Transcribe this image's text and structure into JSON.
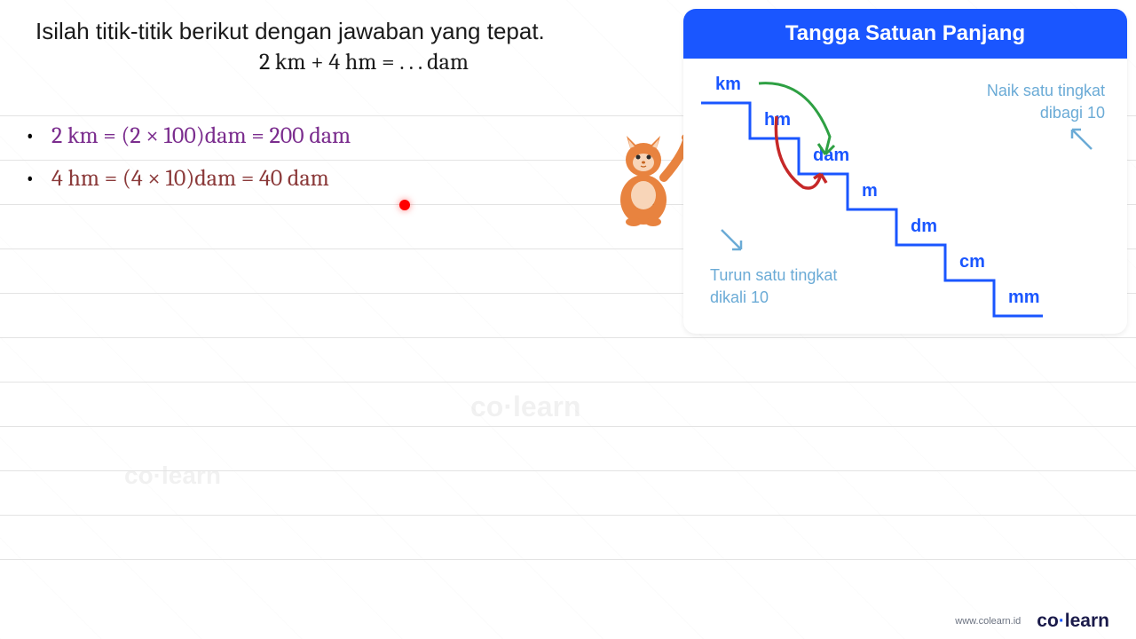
{
  "question": {
    "instruction": "Isilah titik-titik berikut dengan jawaban yang tepat.",
    "equation": "2 km + 4 hm = . . . dam"
  },
  "answers": [
    {
      "text": "2 km = (2 × 100)dam  = 200 dam",
      "color": "#7b2d8e"
    },
    {
      "text": "4 hm = (4 × 10)dam = 40 dam",
      "color": "#8b3a3a"
    }
  ],
  "panel": {
    "title": "Tangga Satuan Panjang",
    "header_bg": "#1a56ff",
    "header_color": "#ffffff",
    "units": [
      "km",
      "hm",
      "dam",
      "m",
      "dm",
      "cm",
      "mm"
    ],
    "unit_color": "#1a56ff",
    "stair_step_w": 55,
    "stair_step_h": 40,
    "stair_color": "#1a56ff",
    "stair_stroke_width": 3,
    "note_up": "Naik satu tingkat\ndibagi 10",
    "note_down": "Turun satu tingkat\ndikali 10",
    "note_color": "#6babd6",
    "arrow_down_color": "#2ea043",
    "arrow_up_color": "#c62828"
  },
  "footer": {
    "url": "www.colearn.id",
    "logo_pre": "co",
    "logo_dot": "·",
    "logo_post": "learn"
  },
  "watermark": "co·learn",
  "colors": {
    "ruled_line": "#e3e3e3",
    "red_dot": "#ff0000",
    "cat_body": "#e8833f",
    "cat_stripes": "#c66520"
  }
}
